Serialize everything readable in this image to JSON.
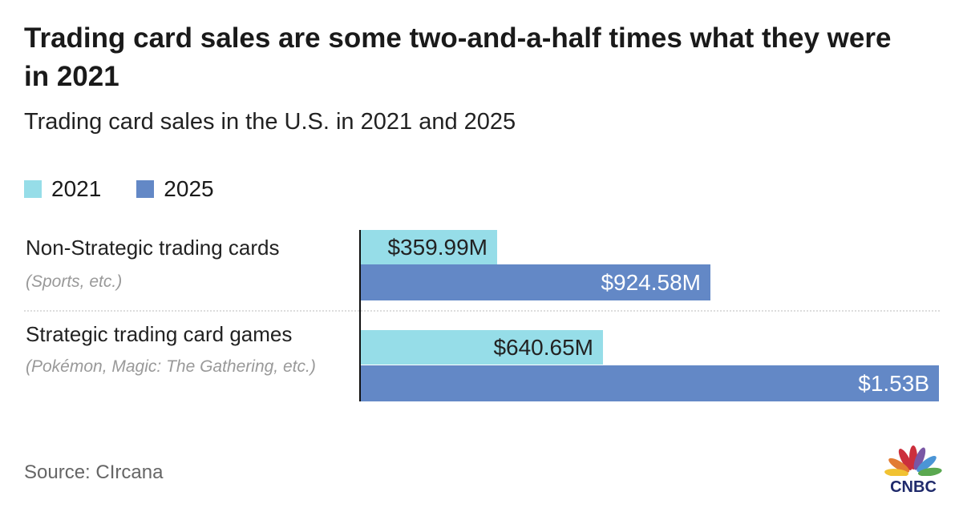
{
  "title": "Trading card sales are some two-and-a-half times what they were in 2021",
  "subtitle": "Trading card sales in the U.S. in 2021 and 2025",
  "source": "Source: CIrcana",
  "logo": "CNBC",
  "colors": {
    "2021": "#96dde8",
    "2025": "#6388c6"
  },
  "chart_data": {
    "type": "bar",
    "orientation": "horizontal",
    "title": "Trading card sales are some two-and-a-half times what they were in 2021",
    "subtitle": "Trading card sales in the U.S. in 2021 and 2025",
    "legend": [
      "2021",
      "2025"
    ],
    "legend_position": "top-left",
    "unit": "million USD",
    "categories": [
      {
        "label": "Non-Strategic trading cards",
        "sublabel": "(Sports, etc.)"
      },
      {
        "label": "Strategic trading card games",
        "sublabel": "(Pokémon, Magic: The Gathering, etc.)"
      }
    ],
    "series": [
      {
        "name": "2021",
        "values": [
          359.99,
          640.65
        ],
        "labels": [
          "$359.99M",
          "$640.65M"
        ]
      },
      {
        "name": "2025",
        "values": [
          924.58,
          1530
        ],
        "labels": [
          "$924.58M",
          "$1.53B"
        ]
      }
    ],
    "xlim": [
      0,
      1530
    ]
  }
}
